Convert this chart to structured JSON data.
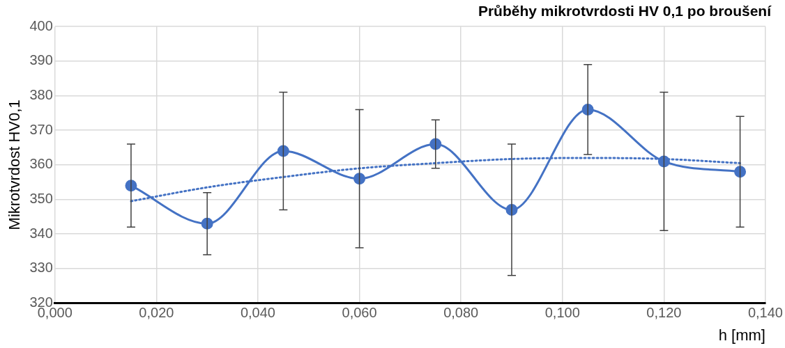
{
  "chart_data": {
    "type": "line",
    "title": "Průběhy mikrotvrdosti HV 0,1 po broušení",
    "xlabel": "h [mm]",
    "ylabel": "Mikrotvrdost HV0,1",
    "x": [
      0.015,
      0.03,
      0.045,
      0.06,
      0.075,
      0.09,
      0.105,
      0.12,
      0.135
    ],
    "series": [
      {
        "color": "#4472c4",
        "values": [
          354,
          343,
          364,
          356,
          366,
          347,
          376,
          361,
          358
        ],
        "errors": [
          [
            342,
            366
          ],
          [
            334,
            352
          ],
          [
            347,
            381
          ],
          [
            336,
            376
          ],
          [
            359,
            373
          ],
          [
            328,
            366
          ],
          [
            363,
            389
          ],
          [
            341,
            381
          ],
          [
            342,
            374
          ]
        ],
        "marker": "circle",
        "line_style": "solid"
      },
      {
        "type": "line",
        "color": "#4472c4",
        "x": [
          0.015,
          0.03,
          0.045,
          0.06,
          0.075,
          0.09,
          0.105,
          0.12,
          0.135
        ],
        "values": [
          349.5,
          353.5,
          356.5,
          359,
          360.5,
          361.7,
          362,
          361.7,
          360.5
        ],
        "marker": "none",
        "line_style": "dotted"
      }
    ],
    "xlim": [
      0,
      0.14
    ],
    "xticks": [
      {
        "value": 0,
        "label": "0,000"
      },
      {
        "value": 0.02,
        "label": "0,020"
      },
      {
        "value": 0.04,
        "label": "0,040"
      },
      {
        "value": 0.06,
        "label": "0,060"
      },
      {
        "value": 0.08,
        "label": "0,080"
      },
      {
        "value": 0.1,
        "label": "0,100"
      },
      {
        "value": 0.12,
        "label": "0,120"
      },
      {
        "value": 0.14,
        "label": "0,140"
      }
    ],
    "ylim": [
      320,
      400
    ],
    "yticks": [
      320,
      330,
      340,
      350,
      360,
      370,
      380,
      390,
      400
    ],
    "grid": true,
    "legend": false
  }
}
